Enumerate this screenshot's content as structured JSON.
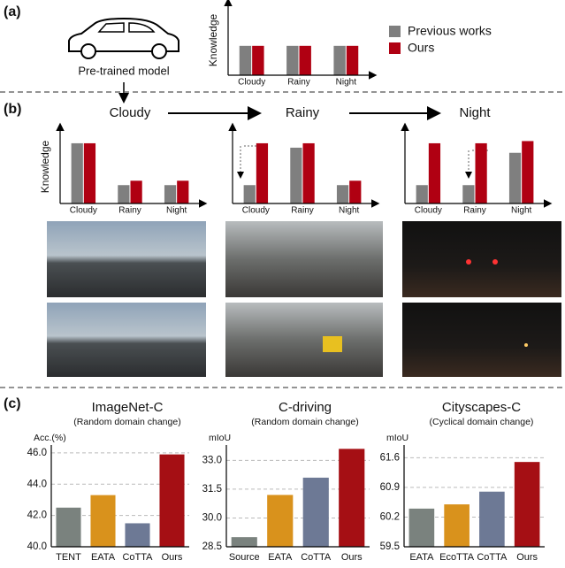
{
  "panels": [
    "(a)",
    "(b)",
    "(c)"
  ],
  "model_label": "Pre-trained model",
  "chart_data": [
    {
      "type": "bar",
      "ylabel": "Knowledge",
      "categories": [
        "Cloudy",
        "Rainy",
        "Night"
      ],
      "ylim": [
        0,
        10
      ],
      "series": [
        {
          "name": "Previous works",
          "color": "#7f7f7f",
          "values": [
            4.2,
            4.2,
            4.2
          ]
        },
        {
          "name": "Ours",
          "color": "#b00012",
          "values": [
            4.2,
            4.2,
            4.2
          ]
        }
      ]
    },
    {
      "type": "bar",
      "title": "Cloudy",
      "ylabel": "Knowledge",
      "categories": [
        "Cloudy",
        "Rainy",
        "Night"
      ],
      "ylim": [
        0,
        10
      ],
      "series": [
        {
          "color": "#7f7f7f",
          "values": [
            8.2,
            2.5,
            2.5
          ]
        },
        {
          "color": "#b00012",
          "values": [
            8.2,
            3.1,
            3.1
          ]
        }
      ]
    },
    {
      "type": "bar",
      "title": "Rainy",
      "categories": [
        "Cloudy",
        "Rainy",
        "Night"
      ],
      "ylim": [
        0,
        10
      ],
      "series": [
        {
          "color": "#7f7f7f",
          "values": [
            2.5,
            7.6,
            2.5
          ]
        },
        {
          "color": "#b00012",
          "values": [
            8.2,
            8.2,
            3.1
          ]
        }
      ]
    },
    {
      "type": "bar",
      "title": "Night",
      "categories": [
        "Cloudy",
        "Rainy",
        "Night"
      ],
      "ylim": [
        0,
        10
      ],
      "series": [
        {
          "color": "#7f7f7f",
          "values": [
            2.5,
            2.5,
            6.9
          ]
        },
        {
          "color": "#b00012",
          "values": [
            8.2,
            8.2,
            8.5
          ]
        }
      ]
    },
    {
      "type": "bar",
      "title": "ImageNet-C",
      "subtitle": "(Random domain change)",
      "ylabel": "Acc.(%)",
      "grid": true,
      "categories": [
        "TENT",
        "EATA",
        "CoTTA",
        "Ours"
      ],
      "values": [
        42.5,
        43.3,
        41.5,
        45.9
      ],
      "colors": [
        "#7a827e",
        "#d9921c",
        "#6d7995",
        "#a50f14"
      ],
      "ylim": [
        40,
        46.5
      ],
      "yticks": [
        {
          "value": 40,
          "label": "40.0"
        },
        {
          "value": 42,
          "label": "42.0"
        },
        {
          "value": 44,
          "label": "44.0"
        },
        {
          "value": 46,
          "label": "46.0"
        }
      ]
    },
    {
      "type": "bar",
      "title": "C-driving",
      "subtitle": "(Random domain change)",
      "ylabel": "mIoU",
      "grid": true,
      "categories": [
        "Source",
        "EATA",
        "CoTTA",
        "Ours"
      ],
      "values": [
        29.0,
        31.2,
        32.1,
        33.6
      ],
      "colors": [
        "#7a827e",
        "#d9921c",
        "#6d7995",
        "#a50f14"
      ],
      "ylim": [
        28.5,
        33.8
      ],
      "yticks": [
        28.5,
        {
          "value": 30,
          "label": "30.0"
        },
        31.5,
        {
          "value": 33,
          "label": "33.0"
        }
      ]
    },
    {
      "type": "bar",
      "title": "Cityscapes-C",
      "subtitle": "(Cyclical domain change)",
      "ylabel": "mIoU",
      "grid": true,
      "categories": [
        "EATA",
        "EcoTTA",
        "CoTTA",
        "Ours"
      ],
      "values": [
        60.4,
        60.5,
        60.8,
        61.5
      ],
      "colors": [
        "#7a827e",
        "#d9921c",
        "#6d7995",
        "#a50f14"
      ],
      "ylim": [
        59.5,
        61.9
      ],
      "yticks": [
        59.5,
        60.2,
        60.9,
        61.6
      ]
    }
  ]
}
